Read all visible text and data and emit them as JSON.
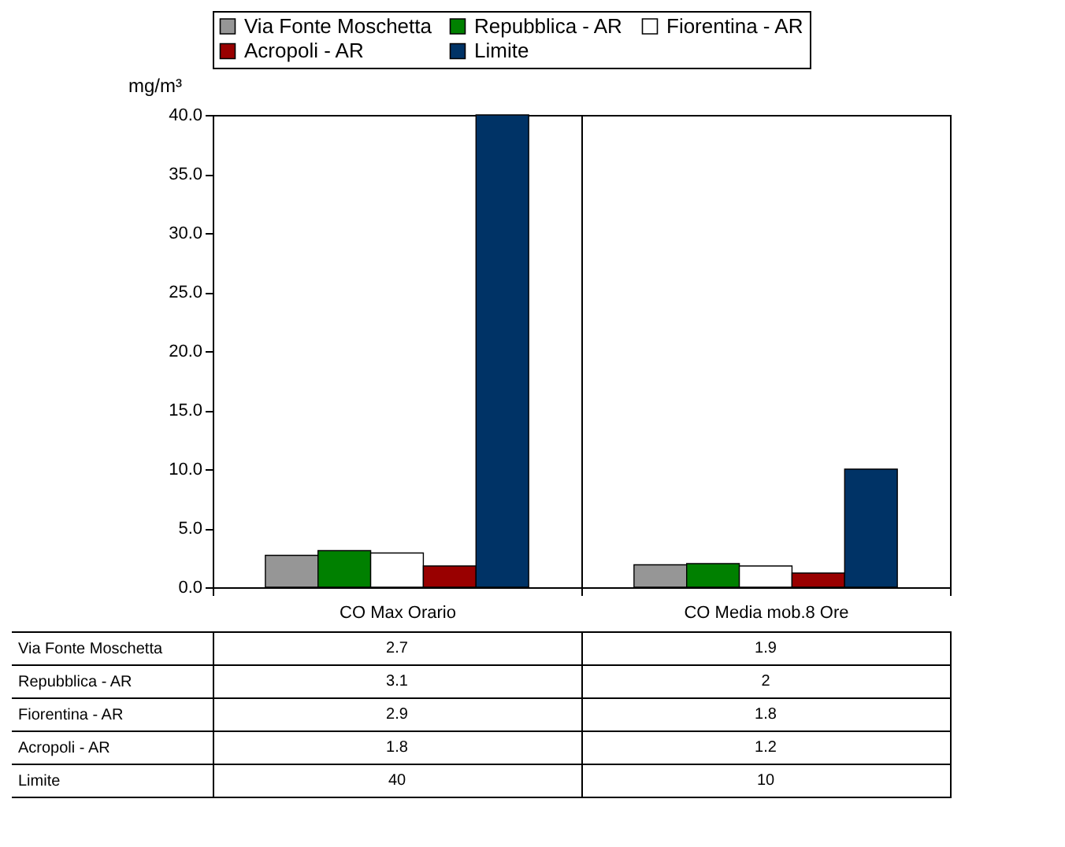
{
  "chart_data": {
    "type": "bar",
    "ylabel": "mg/m³",
    "categories": [
      "CO Max Orario",
      "CO Media mob.8 Ore"
    ],
    "series": [
      {
        "name": "Via Fonte Moschetta",
        "color": "#969696",
        "values": [
          2.7,
          1.9
        ]
      },
      {
        "name": "Repubblica - AR",
        "color": "#008000",
        "values": [
          3.1,
          2
        ]
      },
      {
        "name": "Fiorentina - AR",
        "color": "#ffffff",
        "values": [
          2.9,
          1.8
        ]
      },
      {
        "name": "Acropoli - AR",
        "color": "#990000",
        "values": [
          1.8,
          1.2
        ]
      },
      {
        "name": "Limite",
        "color": "#003366",
        "values": [
          40,
          10
        ]
      }
    ],
    "ylim": [
      0,
      40
    ],
    "yticks": [
      {
        "value": 0,
        "label": "0.0"
      },
      {
        "value": 5,
        "label": "5.0"
      },
      {
        "value": 10,
        "label": "10.0"
      },
      {
        "value": 15,
        "label": "15.0"
      },
      {
        "value": 20,
        "label": "20.0"
      },
      {
        "value": 25,
        "label": "25.0"
      },
      {
        "value": 30,
        "label": "30.0"
      },
      {
        "value": 35,
        "label": "35.0"
      },
      {
        "value": 40,
        "label": "40.0"
      }
    ],
    "legend": "top",
    "data_labels": true
  }
}
